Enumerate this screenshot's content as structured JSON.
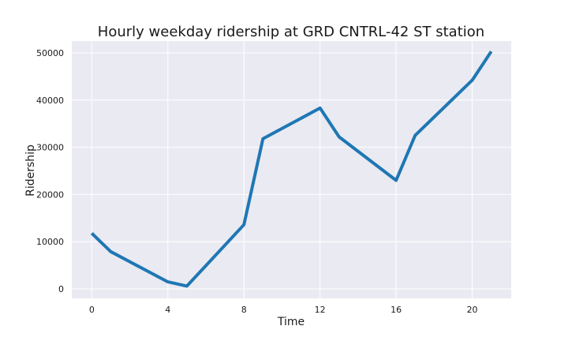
{
  "chart_data": {
    "type": "line",
    "title": "Hourly weekday ridership at GRD CNTRL-42 ST station",
    "xlabel": "Time",
    "ylabel": "Ridership",
    "xlim": [
      -1.05,
      22.05
    ],
    "ylim": [
      -2000,
      52500
    ],
    "xticks": [
      0,
      4,
      8,
      12,
      16,
      20
    ],
    "yticks": [
      0,
      10000,
      20000,
      30000,
      40000,
      50000
    ],
    "grid": true,
    "x": [
      0,
      1,
      4,
      5,
      8,
      9,
      12,
      13,
      16,
      17,
      20,
      21
    ],
    "series": [
      {
        "color": "#1f77b4",
        "values": [
          11800,
          7900,
          1500,
          600,
          13600,
          31800,
          38300,
          32200,
          23000,
          32500,
          44200,
          50300
        ]
      }
    ]
  }
}
